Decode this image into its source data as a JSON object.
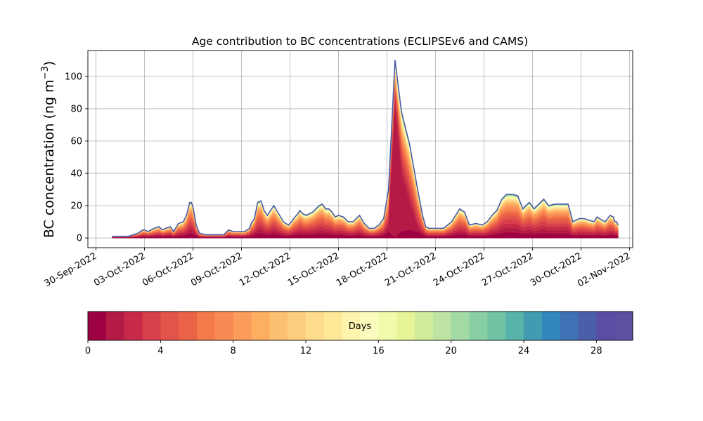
{
  "chart_data": {
    "type": "area",
    "title": "Age contribution to BC concentrations (ECLIPSEv6 and CAMS)",
    "xlabel": "",
    "ylabel": "BC concentration (ng m",
    "ylabel_sup": "−3",
    "ylabel_close": ")",
    "ylim": [
      -6,
      116
    ],
    "yticks": [
      0,
      20,
      40,
      60,
      80,
      100
    ],
    "xlim_days": [
      -0.5,
      33.2
    ],
    "xticks": [
      {
        "day": 0,
        "label": "30-Sep-2022"
      },
      {
        "day": 3,
        "label": "03-Oct-2022"
      },
      {
        "day": 6,
        "label": "06-Oct-2022"
      },
      {
        "day": 9,
        "label": "09-Oct-2022"
      },
      {
        "day": 12,
        "label": "12-Oct-2022"
      },
      {
        "day": 15,
        "label": "15-Oct-2022"
      },
      {
        "day": 18,
        "label": "18-Oct-2022"
      },
      {
        "day": 21,
        "label": "21-Oct-2022"
      },
      {
        "day": 24,
        "label": "24-Oct-2022"
      },
      {
        "day": 27,
        "label": "27-Oct-2022"
      },
      {
        "day": 30,
        "label": "30-Oct-2022"
      },
      {
        "day": 33,
        "label": "02-Nov-2022"
      }
    ],
    "grid": true,
    "total_series": {
      "x_day": [
        1.0,
        1.5,
        2.0,
        2.3,
        2.6,
        2.9,
        3.0,
        3.2,
        3.6,
        3.9,
        4.1,
        4.3,
        4.6,
        4.8,
        5.1,
        5.4,
        5.6,
        5.8,
        5.9,
        6.0,
        6.2,
        6.4,
        6.8,
        7.2,
        7.6,
        7.9,
        8.2,
        8.5,
        8.8,
        9.2,
        9.5,
        9.6,
        9.8,
        10.0,
        10.2,
        10.4,
        10.6,
        11.0,
        11.3,
        11.6,
        11.9,
        12.1,
        12.3,
        12.5,
        12.6,
        12.8,
        13.0,
        13.4,
        13.8,
        14.0,
        14.2,
        14.4,
        14.6,
        14.8,
        15.0,
        15.3,
        15.6,
        15.9,
        16.1,
        16.3,
        16.6,
        16.9,
        17.2,
        17.5,
        17.8,
        18.1,
        18.5,
        18.9,
        19.4,
        19.9,
        20.2,
        20.4,
        20.6,
        20.9,
        21.2,
        21.5,
        22.0,
        22.5,
        22.8,
        23.1,
        23.5,
        23.9,
        24.2,
        24.5,
        24.8,
        25.1,
        25.4,
        25.8,
        26.1,
        26.4,
        26.8,
        27.1,
        27.5,
        27.7,
        28.0,
        28.4,
        28.8,
        29.2,
        29.5,
        29.9,
        30.2,
        30.5,
        30.8,
        31.0,
        31.3,
        31.5,
        31.8,
        32.0,
        32.1,
        32.2,
        32.3
      ],
      "y": [
        1,
        1,
        1,
        2,
        3,
        5,
        5,
        4,
        6,
        7,
        5,
        6,
        7,
        4,
        9,
        10,
        14,
        22,
        22,
        19,
        8,
        3,
        2,
        2,
        2,
        2,
        5,
        4,
        4,
        4,
        6,
        9,
        12,
        22,
        23,
        17,
        14,
        20,
        15,
        10,
        8,
        10,
        13,
        15,
        17,
        15,
        14,
        16,
        20,
        21,
        18,
        18,
        16,
        13,
        14,
        13,
        10,
        10,
        12,
        14,
        9,
        6,
        6,
        8,
        12,
        30,
        110,
        78,
        58,
        30,
        14,
        7,
        6,
        6,
        6,
        6,
        10,
        18,
        16,
        8,
        9,
        8,
        10,
        14,
        17,
        24,
        27,
        27,
        26,
        18,
        22,
        18,
        22,
        24,
        20,
        21,
        21,
        21,
        10,
        12,
        12,
        11,
        10,
        13,
        11,
        10,
        14,
        13,
        10,
        10,
        8
      ]
    },
    "age_colorbar": {
      "label": "Days",
      "range": [
        0,
        30
      ],
      "ticks": [
        0,
        4,
        8,
        12,
        16,
        20,
        24,
        28
      ],
      "colors": [
        "#9e0142",
        "#b31a45",
        "#c72a48",
        "#d73f4b",
        "#e2534a",
        "#eb6346",
        "#f57a4b",
        "#f88b54",
        "#fb9c5b",
        "#fdae61",
        "#fdbf70",
        "#fece7f",
        "#fedc8b",
        "#fee898",
        "#fff4ae",
        "#fbfdbe",
        "#f2faab",
        "#e6f598",
        "#d2ec9e",
        "#bde4a4",
        "#a2d9a4",
        "#88cfa4",
        "#70c4a4",
        "#58b3ab",
        "#419cb1",
        "#3288bd",
        "#3f72b4",
        "#4b5fa9",
        "#5a4ea3",
        "#5e4fa2"
      ]
    },
    "age_share_profile": [
      0.12,
      0.22,
      0.32,
      0.42,
      0.5,
      0.58,
      0.64,
      0.7,
      0.75,
      0.79,
      0.82,
      0.85,
      0.875,
      0.895,
      0.91,
      0.925,
      0.937,
      0.948,
      0.957,
      0.965,
      0.972,
      0.978,
      0.983,
      0.987,
      0.991,
      0.994,
      0.996,
      0.998,
      0.999,
      1.0
    ],
    "spike_share_profile": [
      0.0,
      0.72,
      0.78,
      0.81,
      0.83,
      0.845,
      0.86,
      0.875,
      0.89,
      0.9,
      0.91,
      0.92,
      0.93,
      0.94,
      0.95,
      0.96,
      0.967,
      0.973,
      0.978,
      0.983,
      0.987,
      0.99,
      0.993,
      0.995,
      0.997,
      0.998,
      0.999,
      0.9995,
      1.0,
      1.0
    ]
  }
}
